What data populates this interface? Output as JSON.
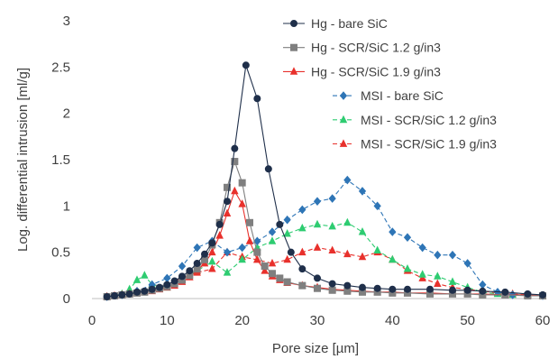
{
  "chart_data": {
    "type": "line",
    "xlabel": "Pore size [µm]",
    "ylabel": "Log. differential intrusion [ml/g]",
    "xlim": [
      0,
      60
    ],
    "ylim": [
      0,
      3
    ],
    "xticks": [
      "0",
      "10",
      "20",
      "30",
      "40",
      "50",
      "60"
    ],
    "yticks": [
      "0",
      "0.5",
      "1",
      "1.5",
      "2",
      "2.5",
      "3"
    ],
    "grid": false,
    "legend_position": "top-right",
    "series": [
      {
        "name": "Hg - bare SiC",
        "color": "#1f2f4a",
        "dash": "solid",
        "marker": "circle",
        "x": [
          2,
          3,
          4,
          5,
          6,
          7,
          8,
          9,
          10,
          11,
          12,
          13,
          14,
          15,
          16,
          17,
          18,
          19,
          20.5,
          22,
          23.5,
          25,
          26.5,
          28,
          30,
          32,
          34,
          36,
          38,
          40,
          42,
          45,
          48,
          50,
          52,
          55,
          58,
          60
        ],
        "y": [
          0.02,
          0.03,
          0.04,
          0.05,
          0.07,
          0.08,
          0.1,
          0.12,
          0.15,
          0.19,
          0.24,
          0.3,
          0.38,
          0.48,
          0.6,
          0.8,
          1.05,
          1.62,
          2.52,
          2.16,
          1.4,
          0.8,
          0.5,
          0.32,
          0.22,
          0.16,
          0.14,
          0.12,
          0.11,
          0.1,
          0.1,
          0.1,
          0.09,
          0.09,
          0.08,
          0.07,
          0.05,
          0.04
        ]
      },
      {
        "name": "Hg - SCR/SiC 1.2 g/in3",
        "color": "#7f7f7f",
        "dash": "solid",
        "marker": "square",
        "x": [
          2,
          3,
          4,
          5,
          6,
          7,
          8,
          9,
          10,
          11,
          12,
          13,
          14,
          15,
          16,
          17,
          18,
          19,
          20,
          21,
          22,
          23,
          24,
          25,
          26,
          28,
          30,
          32,
          34,
          36,
          38,
          40,
          42,
          45,
          48,
          50,
          52,
          55,
          58,
          60
        ],
        "y": [
          0.02,
          0.03,
          0.04,
          0.05,
          0.06,
          0.07,
          0.09,
          0.11,
          0.13,
          0.16,
          0.2,
          0.25,
          0.32,
          0.42,
          0.58,
          0.82,
          1.2,
          1.48,
          1.25,
          0.82,
          0.5,
          0.35,
          0.27,
          0.22,
          0.18,
          0.14,
          0.11,
          0.09,
          0.08,
          0.07,
          0.07,
          0.06,
          0.06,
          0.05,
          0.05,
          0.05,
          0.04,
          0.04,
          0.03,
          0.03
        ]
      },
      {
        "name": "Hg - SCR/SiC 1.9 g/in3",
        "color": "#e8312c",
        "dash": "solid",
        "marker": "triangle",
        "x": [
          2,
          3,
          4,
          5,
          6,
          7,
          8,
          9,
          10,
          11,
          12,
          13,
          14,
          15,
          16,
          17,
          18,
          19,
          20,
          21,
          22,
          23,
          24,
          25,
          26,
          28,
          30,
          32,
          34,
          36,
          38,
          40,
          42,
          45,
          48,
          50,
          52,
          55,
          58,
          60
        ],
        "y": [
          0.02,
          0.03,
          0.04,
          0.05,
          0.06,
          0.07,
          0.08,
          0.1,
          0.12,
          0.14,
          0.18,
          0.23,
          0.3,
          0.38,
          0.5,
          0.68,
          0.92,
          1.16,
          1.02,
          0.62,
          0.42,
          0.3,
          0.24,
          0.2,
          0.17,
          0.14,
          0.12,
          0.1,
          0.09,
          0.08,
          0.07,
          0.07,
          0.06,
          0.06,
          0.05,
          0.05,
          0.05,
          0.04,
          0.04,
          0.03
        ]
      },
      {
        "name": "MSI - bare SiC",
        "color": "#2e75b6",
        "dash": "dashed",
        "marker": "diamond",
        "x": [
          2,
          4,
          6,
          8,
          10,
          12,
          14,
          16,
          18,
          20,
          22,
          24,
          26,
          28,
          30,
          32,
          34,
          36,
          38,
          40,
          42,
          44,
          46,
          48,
          50,
          52,
          54,
          56,
          58,
          60
        ],
        "y": [
          0.02,
          0.04,
          0.08,
          0.15,
          0.22,
          0.35,
          0.55,
          0.62,
          0.5,
          0.55,
          0.62,
          0.72,
          0.85,
          0.96,
          1.05,
          1.08,
          1.28,
          1.16,
          1.0,
          0.72,
          0.66,
          0.55,
          0.47,
          0.47,
          0.38,
          0.15,
          0.07,
          0.04,
          0.04,
          0.03
        ]
      },
      {
        "name": "MSI - SCR/SiC 1.2 g/in3",
        "color": "#2ecc71",
        "dash": "dashed",
        "marker": "triangle",
        "x": [
          2,
          4,
          5,
          6,
          7,
          8,
          10,
          12,
          14,
          16,
          18,
          20,
          22,
          24,
          26,
          28,
          30,
          32,
          34,
          36,
          38,
          40,
          42,
          44,
          46,
          48,
          50,
          52,
          54,
          56,
          58,
          60
        ],
        "y": [
          0.02,
          0.05,
          0.1,
          0.2,
          0.25,
          0.15,
          0.12,
          0.2,
          0.3,
          0.4,
          0.28,
          0.42,
          0.55,
          0.62,
          0.7,
          0.76,
          0.8,
          0.78,
          0.82,
          0.72,
          0.52,
          0.42,
          0.32,
          0.26,
          0.24,
          0.18,
          0.12,
          0.07,
          0.05,
          0.04,
          0.04,
          0.03
        ]
      },
      {
        "name": "MSI - SCR/SiC 1.9 g/in3",
        "color": "#e8312c",
        "dash": "dashed",
        "marker": "triangle",
        "x": [
          2,
          4,
          6,
          8,
          10,
          12,
          14,
          16,
          18,
          20,
          22,
          24,
          26,
          28,
          30,
          32,
          34,
          36,
          38,
          40,
          42,
          44,
          46,
          48,
          50,
          52,
          54,
          56,
          58,
          60
        ],
        "y": [
          0.02,
          0.04,
          0.08,
          0.12,
          0.15,
          0.22,
          0.28,
          0.32,
          0.5,
          0.45,
          0.42,
          0.38,
          0.42,
          0.5,
          0.55,
          0.52,
          0.48,
          0.45,
          0.5,
          0.42,
          0.3,
          0.22,
          0.16,
          0.12,
          0.1,
          0.08,
          0.06,
          0.05,
          0.04,
          0.03
        ]
      }
    ]
  }
}
